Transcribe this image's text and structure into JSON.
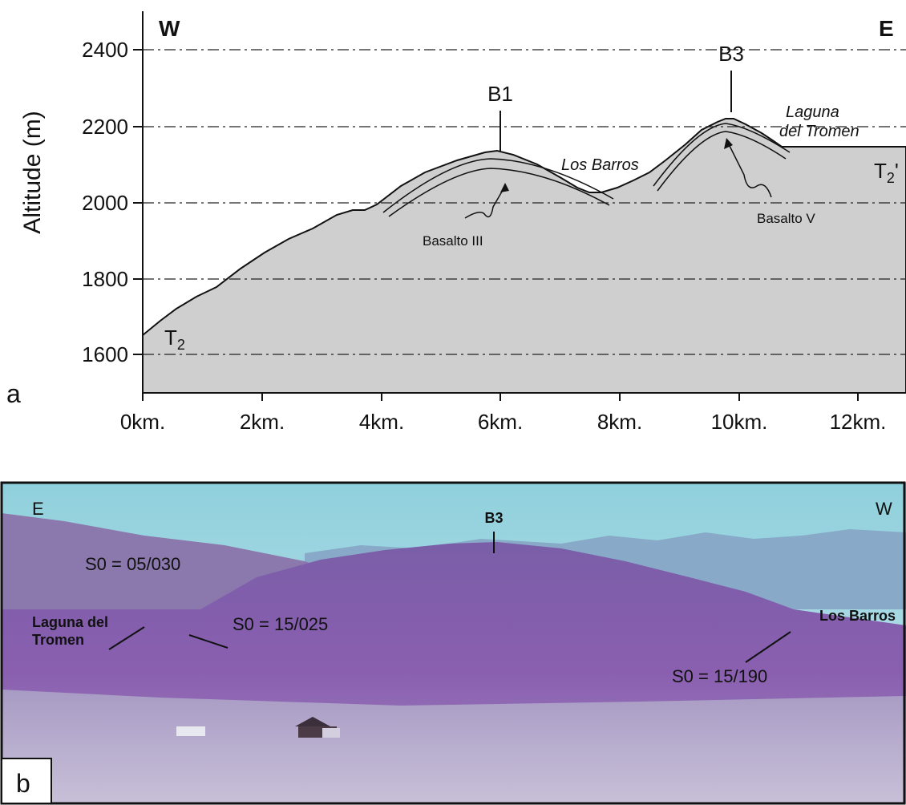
{
  "panel_a": {
    "label": "a",
    "west": "W",
    "east": "E",
    "ylabel": "Altitude (m)",
    "yticks": [
      "2400",
      "2200",
      "2000",
      "1800",
      "1600"
    ],
    "xticks": [
      "0km.",
      "2km.",
      "4km.",
      "6km.",
      "8km.",
      "10km.",
      "12km."
    ],
    "peak_b1": "B1",
    "peak_b3": "B3",
    "los_barros": "Los Barros",
    "laguna_line1": "Laguna",
    "laguna_line2": "del Tromen",
    "basalto_iii": "Basalto III",
    "basalto_v": "Basalto V",
    "t2_west": "T",
    "t2_west_sub": "2",
    "t2_east": "T",
    "t2_east_sub": "2",
    "t2_east_prime": "'"
  },
  "panel_b": {
    "label": "b",
    "east": "E",
    "west": "W",
    "peak": "B3",
    "dip1": "S0 = 05/030",
    "dip2": "S0 = 15/025",
    "dip3": "S0 = 15/190",
    "laguna_line1": "Laguna del",
    "laguna_line2": "Tromen",
    "los_barros": "Los Barros"
  }
}
